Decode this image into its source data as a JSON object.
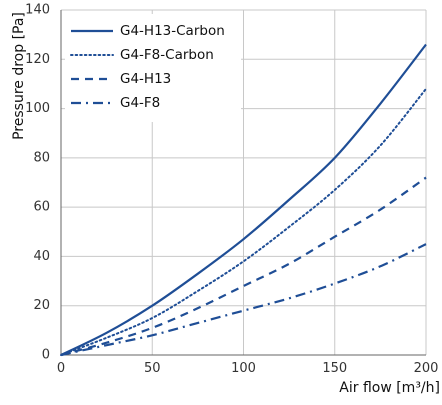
{
  "chart_data": {
    "type": "line",
    "xlabel": "Air flow [m³/h]",
    "ylabel": "Pressure drop [Pa]",
    "xlim": [
      0,
      200
    ],
    "ylim": [
      0,
      140
    ],
    "x_ticks": [
      0,
      50,
      100,
      150,
      200
    ],
    "y_ticks": [
      0,
      20,
      40,
      60,
      80,
      100,
      120,
      140
    ],
    "grid": true,
    "legend_position": "top-left",
    "line_color": "#1f4e96",
    "series": [
      {
        "name": "G4-H13-Carbon",
        "style": "solid",
        "x": [
          0,
          25,
          50,
          75,
          100,
          125,
          150,
          175,
          200
        ],
        "y": [
          0,
          9,
          20,
          33,
          47,
          63,
          80,
          102,
          126
        ]
      },
      {
        "name": "G4-F8-Carbon",
        "style": "dotted",
        "x": [
          0,
          25,
          50,
          75,
          100,
          125,
          150,
          175,
          200
        ],
        "y": [
          0,
          7,
          15,
          26,
          38,
          52,
          67,
          85,
          108
        ]
      },
      {
        "name": "G4-H13",
        "style": "dashed",
        "x": [
          0,
          25,
          50,
          75,
          100,
          125,
          150,
          175,
          200
        ],
        "y": [
          0,
          5,
          11,
          19,
          28,
          37,
          48,
          59,
          72
        ]
      },
      {
        "name": "G4-F8",
        "style": "dashdot",
        "x": [
          0,
          25,
          50,
          75,
          100,
          125,
          150,
          175,
          200
        ],
        "y": [
          0,
          4,
          8,
          13,
          18,
          23,
          29,
          36,
          45
        ]
      }
    ]
  }
}
